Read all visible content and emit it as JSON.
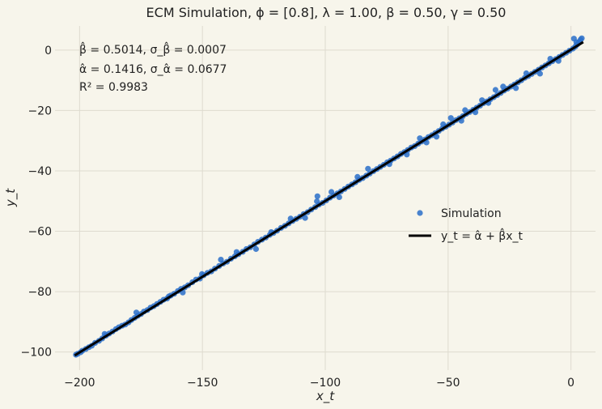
{
  "chart_data": {
    "type": "scatter",
    "title": "ECM Simulation, ϕ = [0.8], λ = 1.00, β = 0.50, γ = 0.50",
    "xlabel": "x_t",
    "ylabel": "y_t",
    "xlim": [
      -210,
      10
    ],
    "ylim": [
      -106,
      8
    ],
    "xticks": [
      -200,
      -150,
      -100,
      -50,
      0
    ],
    "yticks": [
      -100,
      -80,
      -60,
      -40,
      -20,
      0
    ],
    "xtick_labels": [
      "−200",
      "−150",
      "−100",
      "−50",
      "0"
    ],
    "ytick_labels": [
      "−100",
      "−80",
      "−60",
      "−40",
      "−20",
      "0"
    ],
    "grid": true,
    "legend_position": "center-right",
    "annotations": [
      "β̂ = 0.5014, σ_β̂ = 0.0007",
      "α̂ = 0.1416, σ_α̂ = 0.0677",
      "R² = 0.9983"
    ],
    "series": [
      {
        "name": "Simulation",
        "kind": "scatter",
        "color": "#2a6fc9",
        "points": [
          [
            -201.5,
            -100.9
          ],
          [
            -200.8,
            -100.6
          ],
          [
            -199.6,
            -100.1
          ],
          [
            -198.9,
            -99.6
          ],
          [
            -197.5,
            -99.0
          ],
          [
            -196.2,
            -98.4
          ],
          [
            -195.0,
            -97.9
          ],
          [
            -193.7,
            -97.0
          ],
          [
            -192.1,
            -96.3
          ],
          [
            -190.8,
            -95.5
          ],
          [
            -189.3,
            -94.6
          ],
          [
            -188.0,
            -93.9
          ],
          [
            -186.6,
            -93.2
          ],
          [
            -185.2,
            -92.4
          ],
          [
            -184.0,
            -91.8
          ],
          [
            -182.7,
            -91.3
          ],
          [
            -181.4,
            -90.9
          ],
          [
            -180.1,
            -90.2
          ],
          [
            -178.9,
            -89.4
          ],
          [
            -177.6,
            -88.7
          ],
          [
            -176.3,
            -88.0
          ],
          [
            -175.0,
            -87.4
          ],
          [
            -173.8,
            -86.6
          ],
          [
            -172.4,
            -86.1
          ],
          [
            -171.1,
            -85.3
          ],
          [
            -169.8,
            -84.8
          ],
          [
            -168.5,
            -84.1
          ],
          [
            -167.1,
            -83.4
          ],
          [
            -165.8,
            -82.7
          ],
          [
            -164.4,
            -82.3
          ],
          [
            -162.9,
            -81.3
          ],
          [
            -161.5,
            -80.7
          ],
          [
            -160.0,
            -79.8
          ],
          [
            -158.7,
            -79.1
          ],
          [
            -157.2,
            -78.6
          ],
          [
            -155.8,
            -77.9
          ],
          [
            -154.1,
            -76.9
          ],
          [
            -152.6,
            -76.0
          ],
          [
            -151.0,
            -75.7
          ],
          [
            -149.5,
            -74.6
          ],
          [
            -148.0,
            -73.8
          ],
          [
            -146.4,
            -73.3
          ],
          [
            -144.9,
            -72.4
          ],
          [
            -143.2,
            -71.5
          ],
          [
            -141.6,
            -70.7
          ],
          [
            -140.0,
            -70.1
          ],
          [
            -138.4,
            -69.1
          ],
          [
            -136.8,
            -68.3
          ],
          [
            -135.3,
            -67.6
          ],
          [
            -133.6,
            -66.8
          ],
          [
            -132.1,
            -65.9
          ],
          [
            -130.5,
            -65.3
          ],
          [
            -128.9,
            -64.4
          ],
          [
            -127.4,
            -63.5
          ],
          [
            -125.8,
            -62.8
          ],
          [
            -124.2,
            -62.1
          ],
          [
            -122.6,
            -61.2
          ],
          [
            -121.1,
            -60.6
          ],
          [
            -119.6,
            -59.8
          ],
          [
            -118.0,
            -58.9
          ],
          [
            -116.4,
            -58.2
          ],
          [
            -114.9,
            -57.4
          ],
          [
            -113.3,
            -56.6
          ],
          [
            -111.8,
            -55.9
          ],
          [
            -110.3,
            -55.2
          ],
          [
            -108.8,
            -54.3
          ],
          [
            -107.2,
            -53.7
          ],
          [
            -105.7,
            -52.8
          ],
          [
            -104.1,
            -52.0
          ],
          [
            -102.6,
            -51.2
          ],
          [
            -101.1,
            -50.6
          ],
          [
            -99.6,
            -49.8
          ],
          [
            -98.1,
            -48.9
          ],
          [
            -96.6,
            -48.2
          ],
          [
            -95.1,
            -47.5
          ],
          [
            -93.6,
            -46.8
          ],
          [
            -92.1,
            -46.0
          ],
          [
            -90.6,
            -45.2
          ],
          [
            -89.1,
            -44.5
          ],
          [
            -87.7,
            -43.8
          ],
          [
            -86.2,
            -43.0
          ],
          [
            -84.8,
            -42.4
          ],
          [
            -83.3,
            -41.6
          ],
          [
            -81.9,
            -40.9
          ],
          [
            -80.4,
            -40.1
          ],
          [
            -79.0,
            -39.4
          ],
          [
            -77.6,
            -38.7
          ],
          [
            -76.2,
            -38.0
          ],
          [
            -74.8,
            -37.2
          ],
          [
            -73.4,
            -36.6
          ],
          [
            -72.0,
            -35.9
          ],
          [
            -70.6,
            -35.2
          ],
          [
            -69.2,
            -34.4
          ],
          [
            -67.8,
            -33.8
          ],
          [
            -66.4,
            -33.1
          ],
          [
            -65.0,
            -32.3
          ],
          [
            -63.6,
            -31.8
          ],
          [
            -62.2,
            -31.0
          ],
          [
            -60.8,
            -30.3
          ],
          [
            -59.4,
            -29.6
          ],
          [
            -58.0,
            -28.8
          ],
          [
            -56.6,
            -28.2
          ],
          [
            -55.2,
            -27.5
          ],
          [
            -53.8,
            -26.8
          ],
          [
            -52.4,
            -26.0
          ],
          [
            -51.0,
            -25.4
          ],
          [
            -49.6,
            -24.7
          ],
          [
            -48.2,
            -24.0
          ],
          [
            -46.8,
            -23.2
          ],
          [
            -45.4,
            -22.6
          ],
          [
            -44.0,
            -21.9
          ],
          [
            -42.6,
            -21.1
          ],
          [
            -41.2,
            -20.5
          ],
          [
            -39.8,
            -19.8
          ],
          [
            -38.4,
            -19.1
          ],
          [
            -37.0,
            -18.4
          ],
          [
            -35.6,
            -17.6
          ],
          [
            -34.2,
            -17.0
          ],
          [
            -32.8,
            -16.3
          ],
          [
            -31.4,
            -15.6
          ],
          [
            -30.0,
            -14.9
          ],
          [
            -28.6,
            -14.2
          ],
          [
            -27.2,
            -13.4
          ],
          [
            -25.8,
            -12.8
          ],
          [
            -24.4,
            -12.1
          ],
          [
            -23.0,
            -11.4
          ],
          [
            -21.6,
            -10.7
          ],
          [
            -20.2,
            -10.0
          ],
          [
            -18.8,
            -9.2
          ],
          [
            -17.4,
            -8.6
          ],
          [
            -16.0,
            -7.9
          ],
          [
            -14.6,
            -7.2
          ],
          [
            -13.2,
            -6.5
          ],
          [
            -11.8,
            -5.8
          ],
          [
            -10.4,
            -5.1
          ],
          [
            -9.0,
            -4.4
          ],
          [
            -7.6,
            -3.7
          ],
          [
            -6.2,
            -3.0
          ],
          [
            -4.8,
            -2.3
          ],
          [
            -3.4,
            -1.6
          ],
          [
            -2.0,
            -0.9
          ],
          [
            -0.6,
            -0.2
          ],
          [
            0.8,
            0.5
          ],
          [
            1.8,
            1.2
          ],
          [
            2.6,
            1.9
          ],
          [
            3.3,
            2.7
          ],
          [
            3.9,
            3.4
          ],
          [
            4.4,
            3.9
          ],
          [
            2.2,
            2.6
          ],
          [
            1.2,
            3.8
          ],
          [
            -189.8,
            -94.0
          ],
          [
            -176.9,
            -86.9
          ],
          [
            -163.7,
            -81.6
          ],
          [
            -150.2,
            -74.2
          ],
          [
            -136.1,
            -66.9
          ],
          [
            -122.0,
            -60.3
          ],
          [
            -103.4,
            -50.1
          ],
          [
            -94.3,
            -48.7
          ],
          [
            -86.9,
            -42.0
          ],
          [
            -73.9,
            -37.8
          ],
          [
            -61.5,
            -29.2
          ],
          [
            -54.7,
            -28.7
          ],
          [
            -52.0,
            -24.6
          ],
          [
            -44.6,
            -23.4
          ],
          [
            -43.1,
            -19.9
          ],
          [
            -36.2,
            -16.6
          ],
          [
            -33.6,
            -17.5
          ],
          [
            -27.6,
            -12.1
          ],
          [
            -22.4,
            -12.6
          ],
          [
            -18.2,
            -7.7
          ],
          [
            -12.6,
            -7.8
          ],
          [
            -8.4,
            -2.9
          ],
          [
            -5.1,
            -3.6
          ],
          [
            -103.2,
            -48.4
          ],
          [
            -82.6,
            -39.3
          ],
          [
            -66.8,
            -34.6
          ],
          [
            -58.8,
            -30.6
          ],
          [
            -48.9,
            -22.5
          ],
          [
            -38.9,
            -20.6
          ],
          [
            -30.7,
            -13.2
          ],
          [
            -158.0,
            -80.3
          ],
          [
            -142.5,
            -69.4
          ],
          [
            -128.2,
            -65.9
          ],
          [
            -114.1,
            -55.8
          ],
          [
            -108.2,
            -55.6
          ],
          [
            -97.5,
            -47.0
          ]
        ]
      },
      {
        "name": "y_t = α̂ + β̂x_t",
        "kind": "line",
        "color": "#000000",
        "intercept": 0.1416,
        "slope": 0.5014,
        "x_range": [
          -202,
          5
        ]
      }
    ]
  }
}
